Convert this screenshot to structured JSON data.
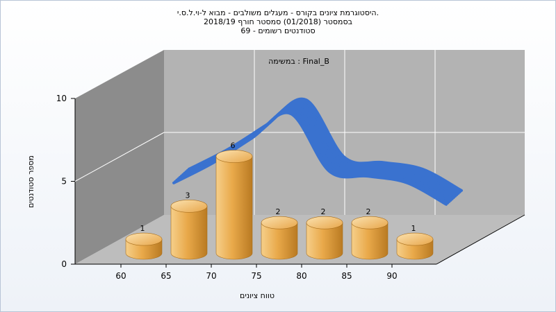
{
  "window": {
    "title_line1": "היסטוגרמת ציונים בקורס - מעגלים משולבים - מבוא ל-וי.ל.ס.י.",
    "title_line2": "בסמסטר  (01/2018)  סמסטר חורף 2018/19",
    "title_line3": "סטודנטים רשומים - 69"
  },
  "colors": {
    "bar_light": "#f6cf8a",
    "bar_mid": "#e9a94a",
    "bar_dark": "#b97a22",
    "curve": "#3a72cf",
    "back_wall": "#b3b3b3",
    "side_wall": "#8c8c8c",
    "floor": "#bdbdbd"
  },
  "chart_data": {
    "type": "bar",
    "title": "היסטוגרמת ציונים בקורס - מעגלים משולבים - מבוא ל-וי.ל.ס.י.",
    "subtitle": "בסמסטר  (01/2018)  סמסטר חורף 2018/19 / סטודנטים רשומים - 69",
    "annotation": "במשימה : Final_B",
    "xlabel": "טווח ציונים",
    "ylabel": "מספר סטודנטים",
    "x_ticks": [
      "60",
      "65",
      "70",
      "75",
      "80",
      "85",
      "90"
    ],
    "y_ticks": [
      "0",
      "5",
      "10"
    ],
    "ylim": [
      0,
      10
    ],
    "values": [
      1,
      3,
      6,
      2,
      2,
      2,
      1
    ],
    "data_labels": [
      "1",
      "3",
      "6",
      "2",
      "2",
      "2",
      "1"
    ],
    "trend_curve": [
      3.2,
      4.4,
      5.9,
      7.4,
      3.9,
      3.6,
      3.2,
      1.9
    ],
    "grid": true,
    "legend": "none"
  }
}
